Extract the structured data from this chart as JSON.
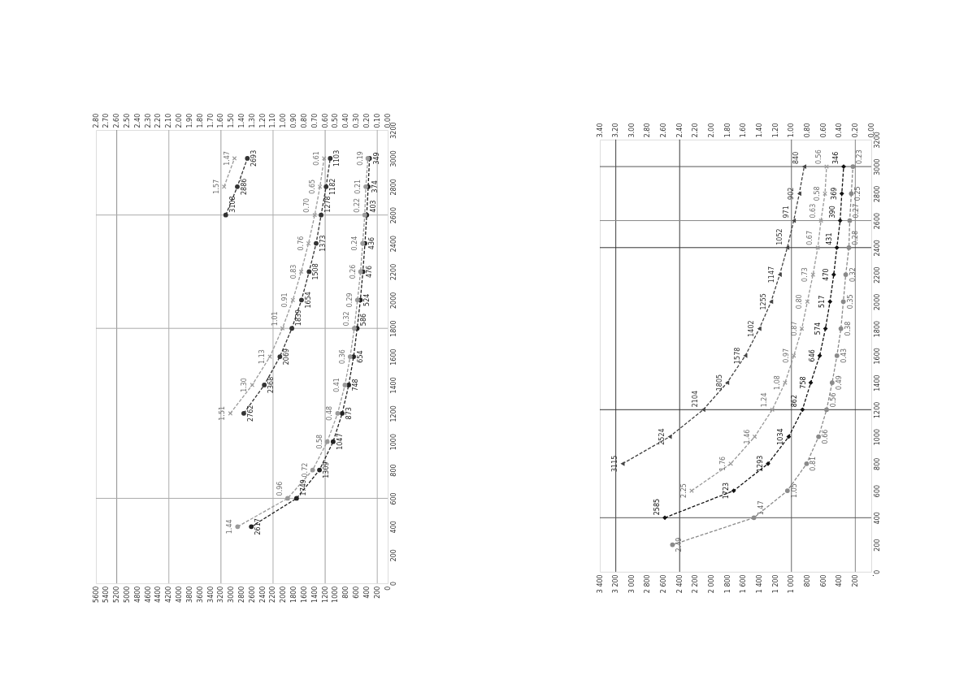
{
  "chart_data": [
    {
      "type": "line",
      "xlim": [
        5600,
        0
      ],
      "xticks": [
        5600,
        5400,
        5200,
        5000,
        4800,
        4600,
        4400,
        4200,
        4000,
        3800,
        3600,
        3400,
        3200,
        3000,
        2800,
        2600,
        2400,
        2200,
        2000,
        1800,
        1600,
        1400,
        1200,
        1000,
        800,
        600,
        400,
        200,
        0
      ],
      "x2lim": [
        2.8,
        0
      ],
      "x2ticks": [
        {
          "value": 2.8,
          "label": "2.80"
        },
        {
          "value": 2.7,
          "label": "2.70"
        },
        {
          "value": 2.6,
          "label": "2.60"
        },
        {
          "value": 2.5,
          "label": "2.50"
        },
        {
          "value": 2.4,
          "label": "2.40"
        },
        {
          "value": 2.3,
          "label": "2.30"
        },
        {
          "value": 2.2,
          "label": "2.20"
        },
        {
          "value": 2.1,
          "label": "2.10"
        },
        {
          "value": 2.0,
          "label": "2.00"
        },
        {
          "value": 1.9,
          "label": "1.90"
        },
        {
          "value": 1.8,
          "label": "1.80"
        },
        {
          "value": 1.7,
          "label": "1.70"
        },
        {
          "value": 1.6,
          "label": "1.60"
        },
        {
          "value": 1.5,
          "label": "1.50"
        },
        {
          "value": 1.4,
          "label": "1.40"
        },
        {
          "value": 1.3,
          "label": "1.30"
        },
        {
          "value": 1.2,
          "label": "1.20"
        },
        {
          "value": 1.1,
          "label": "1.10"
        },
        {
          "value": 1.0,
          "label": "1.00"
        },
        {
          "value": 0.9,
          "label": "0.90"
        },
        {
          "value": 0.8,
          "label": "0.80"
        },
        {
          "value": 0.7,
          "label": "0.70"
        },
        {
          "value": 0.6,
          "label": "0.60"
        },
        {
          "value": 0.5,
          "label": "0.50"
        },
        {
          "value": 0.4,
          "label": "0.40"
        },
        {
          "value": 0.3,
          "label": "0.30"
        },
        {
          "value": 0.2,
          "label": "0.20"
        },
        {
          "value": 0.1,
          "label": "0.10"
        },
        {
          "value": 0,
          "label": "0.00"
        }
      ],
      "ylim": [
        0,
        3200
      ],
      "yticks": [
        0,
        200,
        400,
        600,
        800,
        1000,
        1200,
        1400,
        1600,
        1800,
        2000,
        2200,
        2400,
        2600,
        2800,
        3000,
        3200
      ],
      "ref_lines": [
        {
          "axis": "x",
          "value": 5200,
          "color": "#888888"
        },
        {
          "axis": "x",
          "value": 4200,
          "color": "#aaaaaa"
        },
        {
          "axis": "x",
          "value": 3200,
          "color": "#999999"
        },
        {
          "axis": "x",
          "value": 2200,
          "color": "#aaaaaa"
        },
        {
          "axis": "x",
          "value": 1200,
          "color": "#999999"
        },
        {
          "axis": "x",
          "value": 200,
          "color": "#aaaaaa"
        },
        {
          "axis": "y",
          "value": 600,
          "color": "#aaaaaa"
        },
        {
          "axis": "y",
          "value": 1800,
          "color": "#aaaaaa"
        },
        {
          "axis": "y",
          "value": 2600,
          "color": "#aaaaaa"
        }
      ],
      "series": [
        {
          "color": "#333333",
          "marker": "circle",
          "line_style": "dashed",
          "x": [
            3108,
            2886,
            2693
          ],
          "values": [
            2600,
            2800,
            3000
          ]
        },
        {
          "color": "#9a9a9a",
          "marker": "cross",
          "line_style": "dashed",
          "axis": "x2",
          "x": [
            1.57,
            1.47
          ],
          "values": [
            2800,
            3000
          ]
        },
        {
          "color": "#333333",
          "marker": "circle",
          "line_style": "dashed",
          "x": [
            2762,
            2368,
            2069,
            1839,
            1654,
            1508,
            1373,
            1278,
            1182,
            1103
          ],
          "values": [
            1200,
            1400,
            1600,
            1800,
            2000,
            2200,
            2400,
            2600,
            2800,
            3000
          ]
        },
        {
          "color": "#9a9a9a",
          "marker": "cross",
          "line_style": "dashed",
          "axis": "x2",
          "x": [
            1.51,
            1.3,
            1.13,
            1.01,
            0.91,
            0.83,
            0.76,
            0.7,
            0.65,
            0.61
          ],
          "values": [
            1200,
            1400,
            1600,
            1800,
            2000,
            2200,
            2400,
            2600,
            2800,
            3000
          ]
        },
        {
          "color": "#222222",
          "marker": "circle",
          "line_style": "dashed",
          "x": [
            2617,
            1749,
            1309,
            1047,
            873,
            748,
            654,
            586,
            524,
            476,
            436,
            403,
            374,
            349
          ],
          "values": [
            400,
            600,
            800,
            1000,
            1200,
            1400,
            1600,
            1800,
            2000,
            2200,
            2400,
            2600,
            2800,
            3000
          ]
        },
        {
          "color": "#9a9a9a",
          "marker": "circle",
          "line_style": "dashed",
          "axis": "x2",
          "x": [
            1.44,
            0.96,
            0.72,
            0.58,
            0.48,
            0.41,
            0.36,
            0.32,
            0.29,
            0.26,
            0.24,
            0.22,
            0.21,
            0.19
          ],
          "values": [
            400,
            600,
            800,
            1000,
            1200,
            1400,
            1600,
            1800,
            2000,
            2200,
            2400,
            2600,
            2800,
            3000
          ]
        }
      ],
      "annotations": [
        {
          "text": "3108",
          "x": 3108,
          "y": 2600
        },
        {
          "text": "2886",
          "x": 2886,
          "y": 2800
        },
        {
          "text": "2693",
          "x": 2693,
          "y": 3000
        },
        {
          "text": "1.57",
          "x": 3140,
          "y": 2800
        },
        {
          "text": "1.47",
          "x": 2940,
          "y": 3000
        },
        {
          "text": "2762",
          "x": 2762,
          "y": 1200
        },
        {
          "text": "2368",
          "x": 2368,
          "y": 1400
        },
        {
          "text": "2069",
          "x": 2069,
          "y": 1600
        },
        {
          "text": "1839",
          "x": 1839,
          "y": 1800
        },
        {
          "text": "1654",
          "x": 1654,
          "y": 2000
        },
        {
          "text": "1508",
          "x": 1508,
          "y": 2200
        },
        {
          "text": "1373",
          "x": 1373,
          "y": 2400
        },
        {
          "text": "1278",
          "x": 1278,
          "y": 2600
        },
        {
          "text": "1182",
          "x": 1182,
          "y": 2800
        },
        {
          "text": "1103",
          "x": 1103,
          "y": 3000
        },
        {
          "text": "1.51",
          "x": 3020,
          "y": 1200
        },
        {
          "text": "1.30",
          "x": 2600,
          "y": 1400
        },
        {
          "text": "1.13",
          "x": 2260,
          "y": 1600
        },
        {
          "text": "1.01",
          "x": 2020,
          "y": 1800
        },
        {
          "text": "0.91",
          "x": 1820,
          "y": 2000
        },
        {
          "text": "0.83",
          "x": 1660,
          "y": 2200
        },
        {
          "text": "0.76",
          "x": 1520,
          "y": 2400
        },
        {
          "text": "0.70",
          "x": 1400,
          "y": 2600
        },
        {
          "text": "0.65",
          "x": 1300,
          "y": 2800
        },
        {
          "text": "0.61",
          "x": 1220,
          "y": 3000
        },
        {
          "text": "2617",
          "x": 2617,
          "y": 400
        },
        {
          "text": "1749",
          "x": 1749,
          "y": 600
        },
        {
          "text": "1309",
          "x": 1309,
          "y": 800
        },
        {
          "text": "1047",
          "x": 1047,
          "y": 1000
        },
        {
          "text": "873",
          "x": 873,
          "y": 1200
        },
        {
          "text": "748",
          "x": 748,
          "y": 1400
        },
        {
          "text": "654",
          "x": 654,
          "y": 1600
        },
        {
          "text": "586",
          "x": 586,
          "y": 1800
        },
        {
          "text": "524",
          "x": 524,
          "y": 2000
        },
        {
          "text": "476",
          "x": 476,
          "y": 2200
        },
        {
          "text": "436",
          "x": 436,
          "y": 2400
        },
        {
          "text": "403",
          "x": 403,
          "y": 2600
        },
        {
          "text": "374",
          "x": 374,
          "y": 2800
        },
        {
          "text": "349",
          "x": 349,
          "y": 3000
        },
        {
          "text": "1.44",
          "x": 2880,
          "y": 400
        },
        {
          "text": "0.96",
          "x": 1920,
          "y": 600
        },
        {
          "text": "0.72",
          "x": 1440,
          "y": 800
        },
        {
          "text": "0.58",
          "x": 1160,
          "y": 1000
        },
        {
          "text": "0.48",
          "x": 960,
          "y": 1200
        },
        {
          "text": "0.41",
          "x": 820,
          "y": 1400
        },
        {
          "text": "0.36",
          "x": 720,
          "y": 1600
        },
        {
          "text": "0.32",
          "x": 640,
          "y": 1800
        },
        {
          "text": "0.29",
          "x": 580,
          "y": 2000
        },
        {
          "text": "0.26",
          "x": 520,
          "y": 2200
        },
        {
          "text": "0.24",
          "x": 480,
          "y": 2400
        },
        {
          "text": "0.22",
          "x": 440,
          "y": 2600
        },
        {
          "text": "0.21",
          "x": 420,
          "y": 2800
        },
        {
          "text": "0.19",
          "x": 380,
          "y": 3000
        }
      ]
    },
    {
      "type": "line",
      "xlim": [
        3400,
        0
      ],
      "xticks": [
        {
          "value": 3400,
          "label": "3 400"
        },
        {
          "value": 3200,
          "label": "3 200"
        },
        {
          "value": 3000,
          "label": "3 000"
        },
        {
          "value": 2800,
          "label": "2 800"
        },
        {
          "value": 2600,
          "label": "2 600"
        },
        {
          "value": 2400,
          "label": "2 400"
        },
        {
          "value": 2200,
          "label": "2 200"
        },
        {
          "value": 2000,
          "label": "2 000"
        },
        {
          "value": 1800,
          "label": "1 800"
        },
        {
          "value": 1600,
          "label": "1 600"
        },
        {
          "value": 1400,
          "label": "1 400"
        },
        {
          "value": 1200,
          "label": "1 200"
        },
        {
          "value": 1000,
          "label": "1 000"
        },
        800,
        600,
        400,
        200,
        {
          "value": 0,
          "label": "."
        }
      ],
      "x2lim": [
        3.4,
        0
      ],
      "x2ticks": [
        {
          "value": 3.4,
          "label": "3.40"
        },
        {
          "value": 3.2,
          "label": "3.20"
        },
        {
          "value": 3.0,
          "label": "3.00"
        },
        {
          "value": 2.8,
          "label": "2.80"
        },
        {
          "value": 2.6,
          "label": "2.60"
        },
        {
          "value": 2.4,
          "label": "2.40"
        },
        {
          "value": 2.2,
          "label": "2.20"
        },
        {
          "value": 2.0,
          "label": "2.00"
        },
        {
          "value": 1.8,
          "label": "1.80"
        },
        {
          "value": 1.6,
          "label": "1.60"
        },
        {
          "value": 1.4,
          "label": "1.40"
        },
        {
          "value": 1.2,
          "label": "1.20"
        },
        {
          "value": 1.0,
          "label": "1.00"
        },
        {
          "value": 0.8,
          "label": "0.80"
        },
        {
          "value": 0.6,
          "label": "0.60"
        },
        {
          "value": 0.4,
          "label": "0.40"
        },
        {
          "value": 0.2,
          "label": "0.20"
        },
        {
          "value": 0,
          "label": "0.00"
        }
      ],
      "ylim": [
        0,
        3200
      ],
      "yticks": [
        0,
        200,
        400,
        600,
        800,
        1000,
        1200,
        1400,
        1600,
        1800,
        2000,
        2200,
        2400,
        2600,
        2800,
        3000,
        3200
      ],
      "ref_lines": [
        {
          "axis": "x",
          "value": 3200,
          "color": "#222222"
        },
        {
          "axis": "x",
          "value": 2400,
          "color": "#222222"
        },
        {
          "axis": "x",
          "value": 1000,
          "color": "#555555"
        },
        {
          "axis": "x",
          "value": 200,
          "color": "#777777"
        },
        {
          "axis": "y",
          "value": 400,
          "color": "#555555"
        },
        {
          "axis": "y",
          "value": 1200,
          "color": "#333333"
        },
        {
          "axis": "y",
          "value": 2400,
          "color": "#333333"
        },
        {
          "axis": "y",
          "value": 2600,
          "color": "#888888"
        },
        {
          "axis": "y",
          "value": 3000,
          "color": "#555555"
        }
      ],
      "series": [
        {
          "color": "#444444",
          "marker": "triangle",
          "line_style": "dashed",
          "x": [
            3115,
            2524,
            2104,
            1805,
            1578,
            1402,
            1255,
            1147,
            1052,
            971,
            902,
            840
          ],
          "values": [
            800,
            1000,
            1200,
            1400,
            1600,
            1800,
            2000,
            2200,
            2400,
            2600,
            2800,
            3000
          ]
        },
        {
          "color": "#111111",
          "marker": "diamond",
          "line_style": "dashed",
          "x": [
            2585,
            1723,
            1293,
            1034,
            862,
            758,
            646,
            574,
            517,
            470,
            431,
            390,
            369,
            346
          ],
          "values": [
            400,
            600,
            800,
            1000,
            1200,
            1400,
            1600,
            1800,
            2000,
            2200,
            2400,
            2600,
            2800,
            3000
          ]
        },
        {
          "color": "#999999",
          "marker": "cross",
          "line_style": "dashed",
          "axis": "x2",
          "x": [
            2.25,
            1.76,
            1.46,
            1.24,
            1.08,
            0.97,
            0.87,
            0.8,
            0.73,
            0.67,
            0.63,
            0.58,
            0.56
          ],
          "values": [
            600,
            800,
            1000,
            1200,
            1400,
            1600,
            1800,
            2000,
            2200,
            2400,
            2600,
            2800,
            3000
          ]
        },
        {
          "color": "#8a8a8a",
          "marker": "circle",
          "line_style": "dashed",
          "axis": "x2",
          "x": [
            2.49,
            1.47,
            1.05,
            0.81,
            0.66,
            0.56,
            0.49,
            0.43,
            0.38,
            0.35,
            0.32,
            0.28,
            0.27,
            0.25,
            0.23
          ],
          "values": [
            200,
            400,
            600,
            800,
            1000,
            1200,
            1400,
            1600,
            1800,
            2000,
            2200,
            2400,
            2600,
            2800,
            3000
          ]
        }
      ],
      "annotations": [
        {
          "text": "3115",
          "x": 3115,
          "y": 800
        },
        {
          "text": "2524",
          "x": 2524,
          "y": 1000
        },
        {
          "text": "2104",
          "x": 2104,
          "y": 1200
        },
        {
          "text": "1805",
          "x": 1805,
          "y": 1400
        },
        {
          "text": "1578",
          "x": 1578,
          "y": 1600
        },
        {
          "text": "1402",
          "x": 1402,
          "y": 1800
        },
        {
          "text": "1255",
          "x": 1255,
          "y": 2000
        },
        {
          "text": "1147",
          "x": 1147,
          "y": 2200
        },
        {
          "text": "1052",
          "x": 1052,
          "y": 2400
        },
        {
          "text": "971",
          "x": 971,
          "y": 2600
        },
        {
          "text": "902",
          "x": 902,
          "y": 2800
        },
        {
          "text": "840",
          "x": 840,
          "y": 3000
        },
        {
          "text": "2585",
          "x": 2585,
          "y": 400
        },
        {
          "text": "1723",
          "x": 1723,
          "y": 600
        },
        {
          "text": "1293",
          "x": 1293,
          "y": 800
        },
        {
          "text": "1034",
          "x": 1034,
          "y": 1000
        },
        {
          "text": "862",
          "x": 862,
          "y": 1200
        },
        {
          "text": "758",
          "x": 758,
          "y": 1400
        },
        {
          "text": "646",
          "x": 646,
          "y": 1600
        },
        {
          "text": "574",
          "x": 574,
          "y": 1800
        },
        {
          "text": "517",
          "x": 517,
          "y": 2000
        },
        {
          "text": "470",
          "x": 470,
          "y": 2200
        },
        {
          "text": "431",
          "x": 431,
          "y": 2400
        },
        {
          "text": "390",
          "x": 390,
          "y": 2600
        },
        {
          "text": "369",
          "x": 369,
          "y": 2800
        },
        {
          "text": "346",
          "x": 346,
          "y": 3000
        },
        {
          "text": "2.25",
          "x": 2250,
          "y": 600
        },
        {
          "text": "1.76",
          "x": 1760,
          "y": 800
        },
        {
          "text": "1.46",
          "x": 1460,
          "y": 1000
        },
        {
          "text": "1.24",
          "x": 1240,
          "y": 1200
        },
        {
          "text": "1.08",
          "x": 1080,
          "y": 1400
        },
        {
          "text": "0.97",
          "x": 970,
          "y": 1600
        },
        {
          "text": "0.87",
          "x": 870,
          "y": 1800
        },
        {
          "text": "0.80",
          "x": 800,
          "y": 2000
        },
        {
          "text": "0.73",
          "x": 730,
          "y": 2200
        },
        {
          "text": "0.67",
          "x": 670,
          "y": 2400
        },
        {
          "text": "0.63",
          "x": 630,
          "y": 2600
        },
        {
          "text": "0.58",
          "x": 580,
          "y": 2800
        },
        {
          "text": "0.56",
          "x": 560,
          "y": 3000
        },
        {
          "text": "2.49",
          "x": 2490,
          "y": 200
        },
        {
          "text": "1.47",
          "x": 1470,
          "y": 400
        },
        {
          "text": "1.05",
          "x": 1050,
          "y": 600
        },
        {
          "text": "0.81",
          "x": 810,
          "y": 800
        },
        {
          "text": "0.66",
          "x": 660,
          "y": 1000
        },
        {
          "text": "0.56",
          "x": 560,
          "y": 1200
        },
        {
          "text": "0.49",
          "x": 490,
          "y": 1400
        },
        {
          "text": "0.43",
          "x": 430,
          "y": 1600
        },
        {
          "text": "0.38",
          "x": 380,
          "y": 1800
        },
        {
          "text": "0.35",
          "x": 350,
          "y": 2000
        },
        {
          "text": "0.32",
          "x": 320,
          "y": 2200
        },
        {
          "text": "0.28",
          "x": 280,
          "y": 2400
        },
        {
          "text": "0.27",
          "x": 270,
          "y": 2600
        },
        {
          "text": "0.25",
          "x": 250,
          "y": 2800
        },
        {
          "text": "0.23",
          "x": 230,
          "y": 3000
        }
      ]
    }
  ]
}
